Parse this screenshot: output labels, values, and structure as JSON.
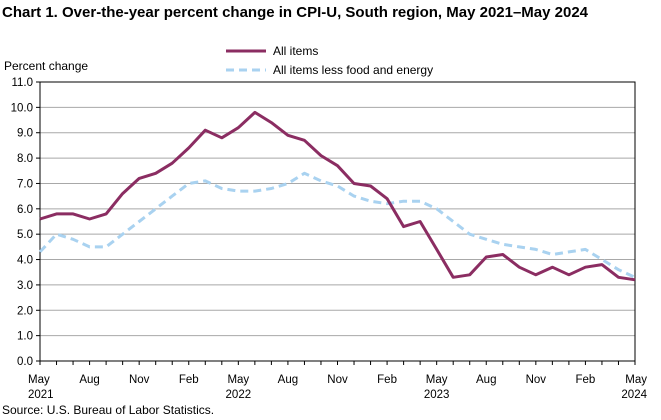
{
  "title": "Chart 1. Over-the-year percent change in CPI-U, South region, May 2021–May 2024",
  "source": "Source: U.S. Bureau  of Labor Statistics.",
  "chart_data": {
    "type": "line",
    "ylabel": "Percent change",
    "ylim": [
      0,
      11
    ],
    "yticks": [
      "0.0",
      "1.0",
      "2.0",
      "3.0",
      "4.0",
      "5.0",
      "6.0",
      "7.0",
      "8.0",
      "9.0",
      "10.0",
      "11.0"
    ],
    "grid": true,
    "legend_position": "top-center",
    "x_tick_labels": [
      {
        "index": 0,
        "month": "May",
        "year": "2021"
      },
      {
        "index": 3,
        "month": "Aug",
        "year": ""
      },
      {
        "index": 6,
        "month": "Nov",
        "year": ""
      },
      {
        "index": 9,
        "month": "Feb",
        "year": ""
      },
      {
        "index": 12,
        "month": "May",
        "year": "2022"
      },
      {
        "index": 15,
        "month": "Aug",
        "year": ""
      },
      {
        "index": 18,
        "month": "Nov",
        "year": ""
      },
      {
        "index": 21,
        "month": "Feb",
        "year": ""
      },
      {
        "index": 24,
        "month": "May",
        "year": "2023"
      },
      {
        "index": 27,
        "month": "Aug",
        "year": ""
      },
      {
        "index": 30,
        "month": "Nov",
        "year": ""
      },
      {
        "index": 33,
        "month": "Feb",
        "year": ""
      },
      {
        "index": 36,
        "month": "May",
        "year": "2024"
      }
    ],
    "series": [
      {
        "name": "All items",
        "color": "#8b2d62",
        "style": "solid",
        "values": [
          5.6,
          5.8,
          5.8,
          5.6,
          5.8,
          6.6,
          7.2,
          7.4,
          7.8,
          8.4,
          9.1,
          8.8,
          9.2,
          9.8,
          9.4,
          8.9,
          8.7,
          8.1,
          7.7,
          7.0,
          6.9,
          6.4,
          5.3,
          5.5,
          4.4,
          3.3,
          3.4,
          4.1,
          4.2,
          3.7,
          3.4,
          3.7,
          3.4,
          3.7,
          3.8,
          3.3,
          3.2
        ]
      },
      {
        "name": "All items less food and energy",
        "color": "#a9d2f0",
        "style": "dashed",
        "values": [
          4.3,
          5.0,
          4.8,
          4.5,
          4.5,
          5.0,
          5.5,
          6.0,
          6.5,
          7.0,
          7.1,
          6.8,
          6.7,
          6.7,
          6.8,
          7.0,
          7.4,
          7.1,
          6.9,
          6.5,
          6.3,
          6.2,
          6.3,
          6.3,
          6.0,
          5.5,
          5.0,
          4.8,
          4.6,
          4.5,
          4.4,
          4.2,
          4.3,
          4.4,
          4.0,
          3.6,
          3.3
        ]
      }
    ]
  }
}
